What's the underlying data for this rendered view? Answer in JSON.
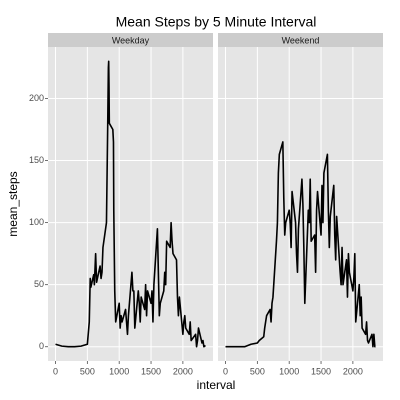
{
  "chart_data": {
    "type": "line",
    "title": "Mean Steps by 5 Minute Interval",
    "x_label": "interval",
    "y_label": "mean_steps",
    "xlim": [
      -118,
      2473
    ],
    "ylim": [
      -11.5,
      241.5
    ],
    "xticks": [
      0,
      500,
      1000,
      1500,
      2000
    ],
    "yticks": [
      0,
      50,
      100,
      150,
      200
    ],
    "grid": true,
    "series": [
      {
        "name": "Weekday",
        "color": "#000000",
        "x": [
          0,
          100,
          200,
          300,
          400,
          500,
          530,
          545,
          555,
          600,
          610,
          630,
          645,
          700,
          715,
          730,
          745,
          800,
          810,
          820,
          830,
          835,
          840,
          845,
          900,
          910,
          915,
          930,
          945,
          1000,
          1015,
          1030,
          1045,
          1100,
          1115,
          1130,
          1145,
          1200,
          1215,
          1230,
          1245,
          1300,
          1315,
          1330,
          1345,
          1400,
          1415,
          1430,
          1445,
          1500,
          1515,
          1530,
          1545,
          1600,
          1615,
          1630,
          1645,
          1700,
          1715,
          1730,
          1745,
          1800,
          1815,
          1830,
          1845,
          1900,
          1915,
          1930,
          1945,
          2000,
          2015,
          2030,
          2045,
          2100,
          2115,
          2130,
          2200,
          2215,
          2230,
          2245,
          2300,
          2315,
          2330,
          2355
        ],
        "values": [
          2,
          0.5,
          0,
          0,
          0.5,
          2,
          20,
          55,
          48,
          58,
          50,
          75,
          52,
          65,
          55,
          60,
          80,
          100,
          140,
          180,
          225,
          230,
          210,
          180,
          175,
          165,
          110,
          45,
          20,
          35,
          15,
          25,
          20,
          30,
          20,
          10,
          25,
          60,
          45,
          45,
          15,
          45,
          35,
          20,
          40,
          30,
          50,
          25,
          45,
          35,
          45,
          20,
          50,
          95,
          60,
          25,
          35,
          45,
          60,
          50,
          85,
          80,
          100,
          85,
          75,
          70,
          40,
          25,
          40,
          10,
          20,
          25,
          15,
          10,
          20,
          5,
          10,
          0,
          5,
          15,
          3,
          5,
          0,
          1
        ]
      },
      {
        "name": "Weekend",
        "color": "#000000",
        "x": [
          0,
          100,
          200,
          300,
          400,
          500,
          530,
          600,
          615,
          630,
          645,
          700,
          715,
          730,
          745,
          800,
          815,
          830,
          845,
          900,
          915,
          930,
          945,
          1000,
          1015,
          1030,
          1045,
          1100,
          1115,
          1130,
          1145,
          1200,
          1215,
          1230,
          1245,
          1300,
          1315,
          1330,
          1345,
          1400,
          1415,
          1430,
          1445,
          1500,
          1515,
          1530,
          1545,
          1600,
          1615,
          1630,
          1645,
          1700,
          1715,
          1730,
          1745,
          1800,
          1815,
          1830,
          1845,
          1900,
          1915,
          1930,
          1945,
          2000,
          2015,
          2030,
          2045,
          2100,
          2115,
          2130,
          2145,
          2200,
          2215,
          2230,
          2245,
          2300,
          2315,
          2330,
          2345,
          2355
        ],
        "values": [
          0,
          0,
          0,
          0,
          2,
          3,
          5,
          8,
          15,
          20,
          25,
          30,
          20,
          35,
          40,
          85,
          100,
          140,
          155,
          165,
          120,
          90,
          100,
          110,
          100,
          80,
          125,
          100,
          75,
          60,
          95,
          135,
          115,
          80,
          35,
          110,
          100,
          135,
          85,
          90,
          60,
          110,
          125,
          90,
          130,
          100,
          140,
          155,
          110,
          80,
          105,
          130,
          90,
          70,
          105,
          60,
          50,
          80,
          50,
          70,
          40,
          75,
          60,
          45,
          55,
          75,
          20,
          50,
          25,
          40,
          15,
          10,
          20,
          5,
          3,
          10,
          0,
          10,
          0,
          0
        ]
      }
    ]
  }
}
